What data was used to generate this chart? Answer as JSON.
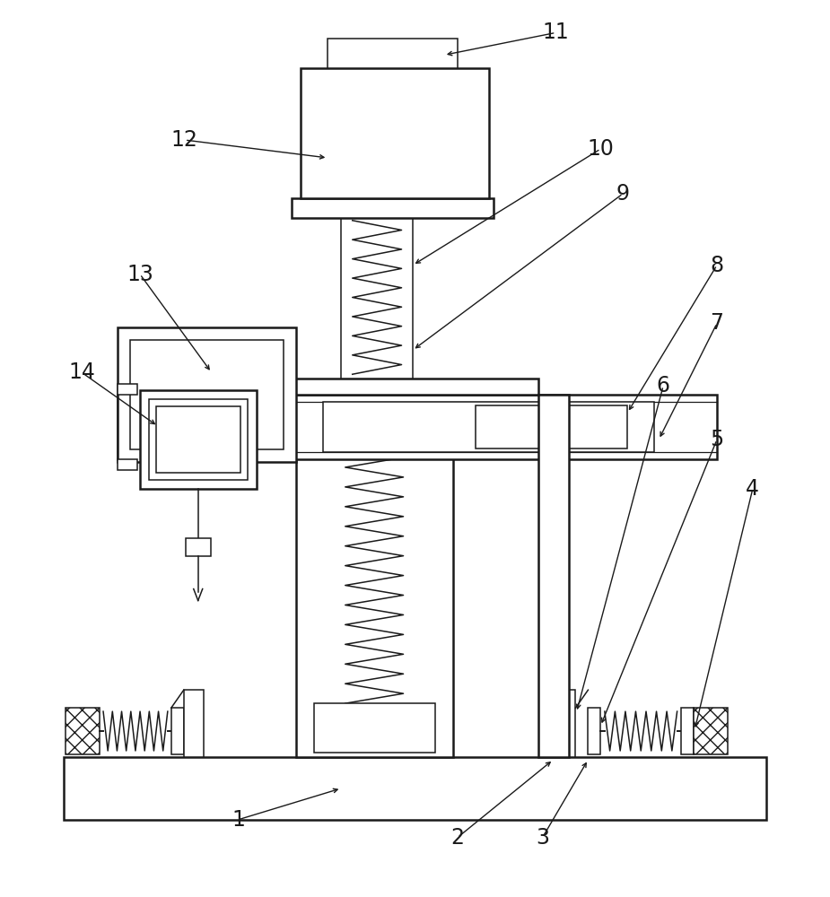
{
  "background_color": "#ffffff",
  "line_color": "#1a1a1a",
  "figsize": [
    9.25,
    10.0
  ],
  "dpi": 100
}
